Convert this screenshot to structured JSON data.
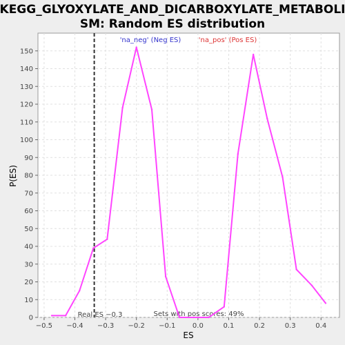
{
  "chart_data": {
    "type": "line",
    "title_line1": "KEGG_GLYOXYLATE_AND_DICARBOXYLATE_METABOLI",
    "title_line2": "SM: Random ES distribution",
    "xlabel": "ES",
    "ylabel": "P(ES)",
    "xlim": [
      -0.52,
      0.46
    ],
    "ylim": [
      0,
      160
    ],
    "x_ticks": [
      -0.5,
      -0.4,
      -0.3,
      -0.2,
      -0.1,
      0.0,
      0.1,
      0.2,
      0.3,
      0.4
    ],
    "x_tick_labels": [
      "−0.5",
      "−0.4",
      "−0.3",
      "−0.2",
      "−0.1",
      "0.0",
      "0.1",
      "0.2",
      "0.3",
      "0.4"
    ],
    "y_ticks": [
      0,
      10,
      20,
      30,
      40,
      50,
      60,
      70,
      80,
      90,
      100,
      110,
      120,
      130,
      140,
      150
    ],
    "grid": true,
    "line_color": "#ff44ff",
    "series": [
      {
        "x": [
          -0.475,
          -0.43,
          -0.385,
          -0.34,
          -0.295,
          -0.245,
          -0.2,
          -0.15,
          -0.105,
          -0.06,
          -0.015,
          0.035,
          0.085,
          0.13,
          0.18,
          0.225,
          0.275,
          0.32,
          0.37,
          0.415
        ],
        "values": [
          1,
          1,
          15,
          39,
          44,
          118,
          152,
          117,
          23,
          0,
          0,
          0,
          6,
          92,
          148,
          112,
          79,
          27,
          18,
          8
        ]
      }
    ],
    "real_es": {
      "x": -0.337,
      "label": "Real ES −0.3"
    },
    "annotations": {
      "neg_label": "'na_neg' (Neg ES)",
      "pos_label": "'na_pos' (Pos ES)",
      "pos_scores": "Sets with pos scores: 49%"
    },
    "colors": {
      "neg": "#3333cc",
      "pos": "#dd3333",
      "real_es_line": "#333333"
    }
  }
}
